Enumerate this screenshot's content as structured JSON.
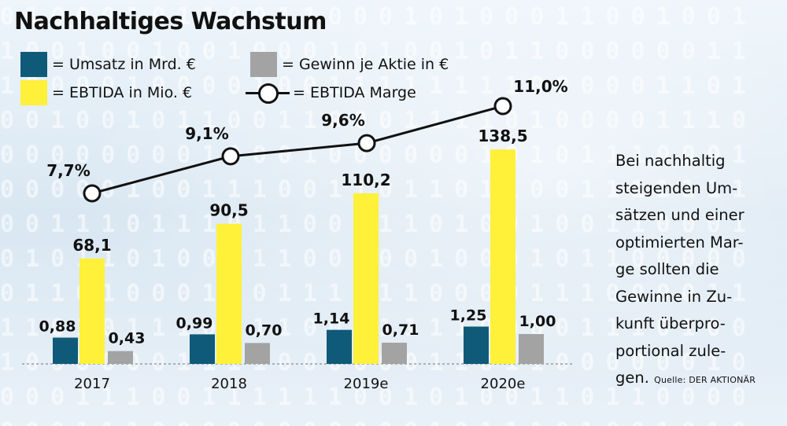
{
  "title": "Nachhaltiges Wachstum",
  "legend": {
    "umsatz": "= Umsatz in Mrd. €",
    "gewinn": "= Gewinn je Aktie in €",
    "ebitda": "= EBTIDA in Mio. €",
    "marge": "= EBTIDA Marge"
  },
  "side_text": "Bei nachhaltig\nsteigenden Um-\nsätzen und einer\noptimierten Mar-\nge sollten die\nGewinne in Zu-\nkunft überpro-\nportional zule-\ngen.",
  "source": "Quelle: DER AKTIONÄR",
  "colors": {
    "umsatz": "#0f5a78",
    "gewinn": "#a3a3a3",
    "ebitda": "#fff03a",
    "marge_line": "#111111",
    "marge_marker": "#ffffff"
  },
  "chart_data": {
    "type": "bar",
    "title": "Nachhaltiges Wachstum",
    "categories": [
      "2017",
      "2018",
      "2019e",
      "2020e"
    ],
    "series": [
      {
        "name": "Umsatz in Mrd. €",
        "values": [
          0.88,
          0.99,
          1.14,
          1.25
        ],
        "labels": [
          "0,88",
          "0,99",
          "1,14",
          "1,25"
        ]
      },
      {
        "name": "EBTIDA in Mio. €",
        "values": [
          68.1,
          90.5,
          110.2,
          138.5
        ],
        "labels": [
          "68,1",
          "90,5",
          "110,2",
          "138,5"
        ]
      },
      {
        "name": "Gewinn je Aktie in €",
        "values": [
          0.43,
          0.7,
          0.71,
          1.0
        ],
        "labels": [
          "0,43",
          "0,70",
          "0,71",
          "1,00"
        ]
      },
      {
        "name": "EBTIDA Marge",
        "type": "line",
        "values": [
          7.7,
          9.1,
          9.6,
          11.0
        ],
        "labels": [
          "7,7%",
          "9,1%",
          "9,6%",
          "11,0%"
        ]
      }
    ],
    "grid": false,
    "legend_position": "top-left"
  }
}
